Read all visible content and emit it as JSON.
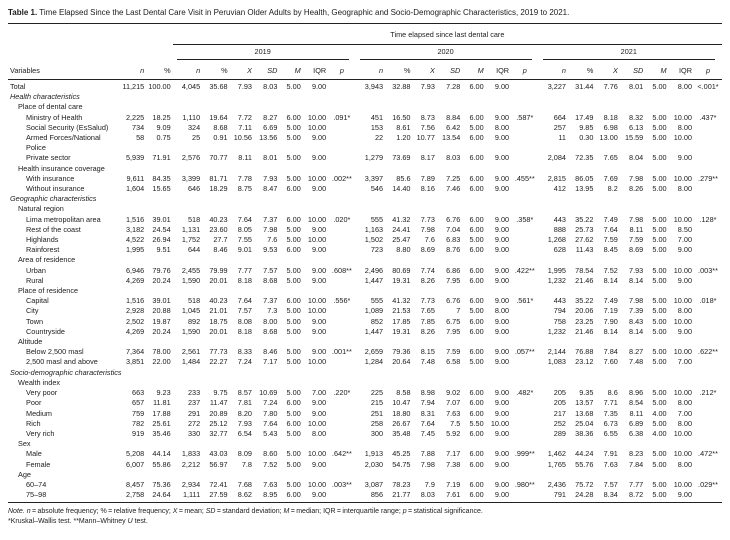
{
  "title": {
    "bold": "Table 1.",
    "rest": " Time Elapsed Since the Last Dental Care Visit in Peruvian Older Adults by Health, Geographic and Socio-Demographic Characteristics, 2019 to 2021."
  },
  "table": {
    "span_header": "Time elapsed since last dental care",
    "col_fixed": {
      "variables": "Variables",
      "n": "n",
      "pct": "%"
    },
    "year_groups": [
      {
        "label": "2019"
      },
      {
        "label": "2020"
      },
      {
        "label": "2021"
      }
    ],
    "stat_headers": [
      {
        "key": "n",
        "label": "n",
        "italic": true
      },
      {
        "key": "pct",
        "label": "%",
        "italic": false
      },
      {
        "key": "x",
        "label": "X",
        "italic": true
      },
      {
        "key": "sd",
        "label": "SD",
        "italic": true
      },
      {
        "key": "m",
        "label": "M",
        "italic": true
      },
      {
        "key": "iqr",
        "label": "IQR",
        "italic": false
      },
      {
        "key": "p",
        "label": "p",
        "italic": true
      }
    ],
    "rows": [
      {
        "label": "Total",
        "level": 0,
        "italic": false,
        "cells": [
          "11,215",
          "100.00",
          "4,045",
          "35.68",
          "7.93",
          "8.03",
          "5.00",
          "9.00",
          "",
          "3,943",
          "32.88",
          "7.93",
          "7.28",
          "6.00",
          "9.00",
          "",
          "3,227",
          "31.44",
          "7.76",
          "8.01",
          "5.00",
          "8.00",
          "<.001*"
        ]
      },
      {
        "label": "Health characteristics",
        "level": 0,
        "italic": true
      },
      {
        "label": "Place of dental care",
        "level": 1,
        "italic": false
      },
      {
        "label": "Ministry of Health",
        "level": 2,
        "cells": [
          "2,225",
          "18.25",
          "1,110",
          "19.64",
          "7.72",
          "8.27",
          "6.00",
          "10.00",
          ".091*",
          "451",
          "16.50",
          "8.73",
          "8.84",
          "6.00",
          "9.00",
          ".587*",
          "664",
          "17.49",
          "8.18",
          "8.32",
          "5.00",
          "10.00",
          ".437*"
        ]
      },
      {
        "label": "Social Security (EsSalud)",
        "level": 2,
        "cells": [
          "734",
          "9.09",
          "324",
          "8.68",
          "7.11",
          "6.69",
          "5.00",
          "10.00",
          "",
          "153",
          "8.61",
          "7.56",
          "6.42",
          "5.00",
          "8.00",
          "",
          "257",
          "9.85",
          "6.98",
          "6.13",
          "5.00",
          "8.00",
          ""
        ]
      },
      {
        "label": "Armed Forces/National Police",
        "level": 2,
        "wrap": true,
        "cells": [
          "58",
          "0.75",
          "25",
          "0.91",
          "10.56",
          "13.56",
          "5.00",
          "9.00",
          "",
          "22",
          "1.20",
          "10.77",
          "13.54",
          "6.00",
          "9.00",
          "",
          "11",
          "0.30",
          "13.00",
          "15.59",
          "5.00",
          "10.00",
          ""
        ]
      },
      {
        "label": "Private sector",
        "level": 2,
        "cells": [
          "5,939",
          "71.91",
          "2,576",
          "70.77",
          "8.11",
          "8.01",
          "5.00",
          "9.00",
          "",
          "1,279",
          "73.69",
          "8.17",
          "8.03",
          "6.00",
          "9.00",
          "",
          "2,084",
          "72.35",
          "7.65",
          "8.04",
          "5.00",
          "9.00",
          ""
        ]
      },
      {
        "label": "Health insurance coverage",
        "level": 1,
        "italic": false
      },
      {
        "label": "With insurance",
        "level": 2,
        "cells": [
          "9,611",
          "84.35",
          "3,399",
          "81.71",
          "7.78",
          "7.93",
          "5.00",
          "10.00",
          ".002**",
          "3,397",
          "85.6",
          "7.89",
          "7.25",
          "6.00",
          "9.00",
          ".455**",
          "2,815",
          "86.05",
          "7.69",
          "7.98",
          "5.00",
          "10.00",
          ".279**"
        ]
      },
      {
        "label": "Without insurance",
        "level": 2,
        "cells": [
          "1,604",
          "15.65",
          "646",
          "18.29",
          "8.75",
          "8.47",
          "6.00",
          "9.00",
          "",
          "546",
          "14.40",
          "8.16",
          "7.46",
          "6.00",
          "9.00",
          "",
          "412",
          "13.95",
          "8.2",
          "8.26",
          "5.00",
          "8.00",
          ""
        ]
      },
      {
        "label": "Geographic characteristics",
        "level": 0,
        "italic": true
      },
      {
        "label": "Natural region",
        "level": 1,
        "italic": false
      },
      {
        "label": "Lima metropolitan area",
        "level": 2,
        "cells": [
          "1,516",
          "39.01",
          "518",
          "40.23",
          "7.64",
          "7.37",
          "6.00",
          "10.00",
          ".020*",
          "555",
          "41.32",
          "7.73",
          "6.76",
          "6.00",
          "9.00",
          ".358*",
          "443",
          "35.22",
          "7.49",
          "7.98",
          "5.00",
          "10.00",
          ".128*"
        ]
      },
      {
        "label": "Rest of the coast",
        "level": 2,
        "cells": [
          "3,182",
          "24.54",
          "1,131",
          "23.60",
          "8.05",
          "7.98",
          "5.00",
          "9.00",
          "",
          "1,163",
          "24.41",
          "7.98",
          "7.04",
          "6.00",
          "9.00",
          "",
          "888",
          "25.73",
          "7.64",
          "8.11",
          "5.00",
          "8.50",
          ""
        ]
      },
      {
        "label": "Highlands",
        "level": 2,
        "cells": [
          "4,522",
          "26.94",
          "1,752",
          "27.7",
          "7.55",
          "7.6",
          "5.00",
          "10.00",
          "",
          "1,502",
          "25.47",
          "7.6",
          "6.83",
          "5.00",
          "9.00",
          "",
          "1,268",
          "27.62",
          "7.59",
          "7.59",
          "5.00",
          "7.00",
          ""
        ]
      },
      {
        "label": "Rainforest",
        "level": 2,
        "cells": [
          "1,995",
          "9.51",
          "644",
          "8.46",
          "9.01",
          "9.53",
          "6.00",
          "9.00",
          "",
          "723",
          "8.80",
          "8.69",
          "8.76",
          "6.00",
          "9.00",
          "",
          "628",
          "11.43",
          "8.45",
          "8.69",
          "5.00",
          "9.00",
          ""
        ]
      },
      {
        "label": "Area of residence",
        "level": 1,
        "italic": false
      },
      {
        "label": "Urban",
        "level": 2,
        "cells": [
          "6,946",
          "79.76",
          "2,455",
          "79.99",
          "7.77",
          "7.57",
          "5.00",
          "9.00",
          ".608**",
          "2,496",
          "80.69",
          "7.74",
          "6.86",
          "6.00",
          "9.00",
          ".422**",
          "1,995",
          "78.54",
          "7.52",
          "7.93",
          "5.00",
          "10.00",
          ".003**"
        ]
      },
      {
        "label": "Rural",
        "level": 2,
        "cells": [
          "4,269",
          "20.24",
          "1,590",
          "20.01",
          "8.18",
          "8.68",
          "5.00",
          "9.00",
          "",
          "1,447",
          "19.31",
          "8.26",
          "7.95",
          "6.00",
          "9.00",
          "",
          "1,232",
          "21.46",
          "8.14",
          "8.14",
          "5.00",
          "9.00",
          ""
        ]
      },
      {
        "label": "Place of residence",
        "level": 1,
        "italic": false
      },
      {
        "label": "Capital",
        "level": 2,
        "cells": [
          "1,516",
          "39.01",
          "518",
          "40.23",
          "7.64",
          "7.37",
          "6.00",
          "10.00",
          ".556*",
          "555",
          "41.32",
          "7.73",
          "6.76",
          "6.00",
          "9.00",
          ".561*",
          "443",
          "35.22",
          "7.49",
          "7.98",
          "5.00",
          "10.00",
          ".018*"
        ]
      },
      {
        "label": "City",
        "level": 2,
        "cells": [
          "2,928",
          "20.88",
          "1,045",
          "21.01",
          "7.57",
          "7.3",
          "5.00",
          "10.00",
          "",
          "1,089",
          "21.53",
          "7.65",
          "7",
          "5.00",
          "8.00",
          "",
          "794",
          "20.06",
          "7.19",
          "7.39",
          "5.00",
          "8.00",
          ""
        ]
      },
      {
        "label": "Town",
        "level": 2,
        "cells": [
          "2,502",
          "19.87",
          "892",
          "18.75",
          "8.08",
          "8.00",
          "5.00",
          "9.00",
          "",
          "852",
          "17.85",
          "7.85",
          "6.75",
          "6.00",
          "9.00",
          "",
          "758",
          "23.25",
          "7.90",
          "8.43",
          "5.00",
          "10.00",
          ""
        ]
      },
      {
        "label": "Countryside",
        "level": 2,
        "cells": [
          "4,269",
          "20.24",
          "1,590",
          "20.01",
          "8.18",
          "8.68",
          "5.00",
          "9.00",
          "",
          "1,447",
          "19.31",
          "8.26",
          "7.95",
          "6.00",
          "9.00",
          "",
          "1,232",
          "21.46",
          "8.14",
          "8.14",
          "5.00",
          "9.00",
          ""
        ]
      },
      {
        "label": "Altitude",
        "level": 1,
        "italic": false
      },
      {
        "label": "Below 2,500 masl",
        "level": 2,
        "cells": [
          "7,364",
          "78.00",
          "2,561",
          "77.73",
          "8.33",
          "8.46",
          "5.00",
          "9.00",
          ".001**",
          "2,659",
          "79.36",
          "8.15",
          "7.59",
          "6.00",
          "9.00",
          ".057**",
          "2,144",
          "76.88",
          "7.84",
          "8.27",
          "5.00",
          "10.00",
          ".622**"
        ]
      },
      {
        "label": "2,500 masl and above",
        "level": 2,
        "cells": [
          "3,851",
          "22.00",
          "1,484",
          "22.27",
          "7.24",
          "7.17",
          "5.00",
          "10.00",
          "",
          "1,284",
          "20.64",
          "7.48",
          "6.58",
          "5.00",
          "9.00",
          "",
          "1,083",
          "23.12",
          "7.60",
          "7.48",
          "5.00",
          "7.00",
          ""
        ]
      },
      {
        "label": "Socio-demographic characteristics",
        "level": 0,
        "italic": true
      },
      {
        "label": "Wealth index",
        "level": 1,
        "italic": false
      },
      {
        "label": "Very poor",
        "level": 2,
        "cells": [
          "663",
          "9.23",
          "233",
          "9.75",
          "8.57",
          "10.69",
          "5.00",
          "7.00",
          ".220*",
          "225",
          "8.58",
          "8.98",
          "9.02",
          "6.00",
          "9.00",
          ".482*",
          "205",
          "9.35",
          "8.6",
          "8.96",
          "5.00",
          "10.00",
          ".212*"
        ]
      },
      {
        "label": "Poor",
        "level": 2,
        "cells": [
          "657",
          "11.81",
          "237",
          "11.47",
          "7.81",
          "7.24",
          "6.00",
          "9.00",
          "",
          "215",
          "10.47",
          "7.94",
          "7.07",
          "6.00",
          "9.00",
          "",
          "205",
          "13.57",
          "7.71",
          "8.54",
          "5.00",
          "8.00",
          ""
        ]
      },
      {
        "label": "Medium",
        "level": 2,
        "cells": [
          "759",
          "17.88",
          "291",
          "20.89",
          "8.20",
          "7.80",
          "5.00",
          "9.00",
          "",
          "251",
          "18.80",
          "8.31",
          "7.63",
          "6.00",
          "9.00",
          "",
          "217",
          "13.68",
          "7.35",
          "8.11",
          "4.00",
          "7.00",
          ""
        ]
      },
      {
        "label": "Rich",
        "level": 2,
        "cells": [
          "782",
          "25.61",
          "272",
          "25.12",
          "7.93",
          "7.64",
          "6.00",
          "10.00",
          "",
          "258",
          "26.67",
          "7.64",
          "7.5",
          "5.50",
          "10.00",
          "",
          "252",
          "25.04",
          "6.73",
          "6.89",
          "5.00",
          "8.00",
          ""
        ]
      },
      {
        "label": "Very rich",
        "level": 2,
        "cells": [
          "919",
          "35.46",
          "330",
          "32.77",
          "6.54",
          "5.43",
          "5.00",
          "8.00",
          "",
          "300",
          "35.48",
          "7.45",
          "5.92",
          "6.00",
          "9.00",
          "",
          "289",
          "38.36",
          "6.55",
          "6.38",
          "4.00",
          "10.00",
          ""
        ]
      },
      {
        "label": "Sex",
        "level": 1,
        "italic": false
      },
      {
        "label": "Male",
        "level": 2,
        "cells": [
          "5,208",
          "44.14",
          "1,833",
          "43.03",
          "8.09",
          "8.60",
          "5.00",
          "10.00",
          ".642**",
          "1,913",
          "45.25",
          "7.88",
          "7.17",
          "6.00",
          "9.00",
          ".999**",
          "1,462",
          "44.24",
          "7.91",
          "8.23",
          "5.00",
          "10.00",
          ".472**"
        ]
      },
      {
        "label": "Female",
        "level": 2,
        "cells": [
          "6,007",
          "55.86",
          "2,212",
          "56.97",
          "7.8",
          "7.52",
          "5.00",
          "9.00",
          "",
          "2,030",
          "54.75",
          "7.98",
          "7.38",
          "6.00",
          "9.00",
          "",
          "1,765",
          "55.76",
          "7.63",
          "7.84",
          "5.00",
          "8.00",
          ""
        ]
      },
      {
        "label": "Age",
        "level": 1,
        "italic": false
      },
      {
        "label": "60–74",
        "level": 2,
        "cells": [
          "8,457",
          "75.36",
          "2,934",
          "72.41",
          "7.68",
          "7.63",
          "5.00",
          "10.00",
          ".003**",
          "3,087",
          "78.23",
          "7.9",
          "7.19",
          "6.00",
          "9.00",
          ".980**",
          "2,436",
          "75.72",
          "7.57",
          "7.77",
          "5.00",
          "10.00",
          ".029**"
        ]
      },
      {
        "label": "75–98",
        "level": 2,
        "cells": [
          "2,758",
          "24.64",
          "1,111",
          "27.59",
          "8.62",
          "8.95",
          "6.00",
          "9.00",
          "",
          "856",
          "21.77",
          "8.03",
          "7.61",
          "6.00",
          "9.00",
          "",
          "791",
          "24.28",
          "8.34",
          "8.72",
          "5.00",
          "9.00",
          ""
        ]
      }
    ]
  },
  "note": {
    "line1_segments": [
      {
        "t": "Note. ",
        "i": true
      },
      {
        "t": "n",
        "i": true
      },
      {
        "t": " = absolute frequency; % = relative frequency; ",
        "i": false
      },
      {
        "t": "X",
        "i": true
      },
      {
        "t": " = mean; ",
        "i": false
      },
      {
        "t": "SD",
        "i": true
      },
      {
        "t": " = standard deviation; ",
        "i": false
      },
      {
        "t": "M",
        "i": true
      },
      {
        "t": " = median; ",
        "i": false
      },
      {
        "t": "IQR",
        "i": false
      },
      {
        "t": " = interquartile range; ",
        "i": false
      },
      {
        "t": "p",
        "i": true
      },
      {
        "t": " = statistical significance.",
        "i": false
      }
    ],
    "line2_segments": [
      {
        "t": "*Kruskal–Wallis test. **Mann–Whitney ",
        "i": false
      },
      {
        "t": "U",
        "i": true
      },
      {
        "t": " test.",
        "i": false
      }
    ]
  }
}
